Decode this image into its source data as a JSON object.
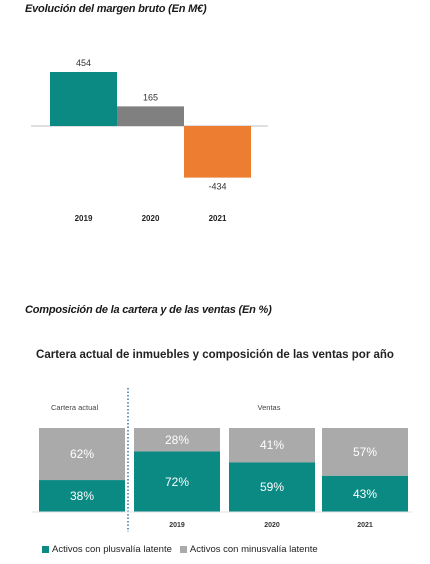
{
  "headings": {
    "chart1": "Evolución del margen bruto (En M€)",
    "chart2": "Composición de la cartera y de las ventas (En %)"
  },
  "colors": {
    "teal": "#0b8a84",
    "gray": "#808080",
    "orange": "#ed7d31",
    "light_gray": "#aaaaaa"
  },
  "chart_data": [
    {
      "type": "bar",
      "title": "Evolución del margen bruto (En M€)",
      "categories": [
        "2019",
        "2020",
        "2021"
      ],
      "values": [
        454,
        165,
        -434
      ],
      "value_labels": [
        "454",
        "165",
        "-434"
      ],
      "bar_colors": [
        "#0b8a84",
        "#808080",
        "#ed7d31"
      ],
      "grid": false
    },
    {
      "type": "bar",
      "stacked": true,
      "percent": true,
      "title": "Cartera actual de inmuebles y composición de las ventas por año",
      "group_labels": {
        "portfolio": "Cartera actual",
        "sales": "Ventas"
      },
      "categories": [
        "",
        "2019",
        "2020",
        "2021"
      ],
      "series": [
        {
          "name": "Activos con plusvalía latente",
          "color": "#0b8a84",
          "values": [
            38,
            72,
            59,
            43
          ],
          "labels": [
            "38%",
            "72%",
            "59%",
            "43%"
          ]
        },
        {
          "name": "Activos con minusvalía latente",
          "color": "#aaaaaa",
          "values": [
            62,
            28,
            41,
            57
          ],
          "labels": [
            "62%",
            "28%",
            "41%",
            "57%"
          ]
        }
      ],
      "ylim": [
        0,
        100
      ],
      "legend": "bottom"
    }
  ]
}
